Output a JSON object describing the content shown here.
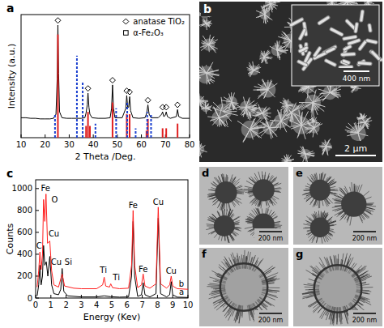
{
  "chart_data": [
    {
      "type": "line",
      "panel": "a",
      "x_label": "2 Theta /Deg.",
      "y_label": "Intensity (a.u.)",
      "xlim": [
        10,
        80
      ],
      "xticks": [
        10,
        20,
        30,
        40,
        50,
        60,
        70,
        80
      ],
      "ylim": [
        0,
        105
      ],
      "tick_labels": "x",
      "legend": "upper right",
      "series": [
        {
          "type": "line",
          "color": "#000000",
          "x": [
            10,
            12,
            14,
            16,
            18,
            20,
            22,
            23.5,
            24.5,
            25,
            25.3,
            25.6,
            26,
            27,
            29,
            31,
            33,
            35,
            36.5,
            37,
            37.5,
            37.8,
            38.2,
            38.6,
            39.5,
            42,
            45,
            47,
            47.6,
            48,
            48.4,
            49,
            52,
            53.5,
            53.9,
            54.3,
            54.7,
            55.1,
            55.5,
            56.5,
            59,
            61.5,
            62.2,
            62.7,
            63.2,
            64,
            67,
            68.4,
            68.8,
            69.3,
            69.9,
            70.3,
            70.8,
            72,
            74.5,
            75,
            75.5,
            77,
            80
          ],
          "values": [
            17,
            17,
            16.5,
            16.5,
            16,
            16,
            16,
            16.5,
            20,
            50,
            96,
            55,
            22,
            17,
            16.5,
            16.5,
            16.5,
            16.5,
            17,
            21,
            28,
            38,
            26,
            20,
            17,
            16.5,
            16.5,
            17,
            25,
            45,
            25,
            17,
            17,
            25,
            36,
            26,
            26,
            35,
            23,
            17,
            16.5,
            17,
            21,
            28,
            20,
            17,
            17,
            20,
            22,
            18,
            19,
            22,
            18,
            16.5,
            18,
            24,
            18,
            16.5,
            16.5
          ]
        },
        {
          "name": "anatase TiO₂",
          "type": "scatter",
          "marker": "diamond",
          "color": "#000000",
          "x": [
            25.3,
            37.8,
            48,
            53.9,
            55.1,
            62.7,
            68.8,
            70.3,
            75
          ],
          "values": [
            100,
            42,
            49,
            40,
            39,
            32,
            26,
            26,
            28
          ]
        },
        {
          "name": "α-Fe₂O₃",
          "type": "scatter",
          "marker": "square",
          "color": "#000000",
          "x": [],
          "values": []
        },
        {
          "type": "stem",
          "color": "#e02020",
          "line_style": "solid",
          "x": [
            25.3,
            37,
            37.8,
            38.6,
            48,
            53.9,
            55.1,
            62.1,
            62.7,
            68.8,
            70.3,
            75
          ],
          "values": [
            88,
            10,
            22,
            10,
            30,
            20,
            20,
            6,
            16,
            8,
            8,
            12
          ]
        },
        {
          "type": "stem",
          "color": "#1a3fcf",
          "line_style": "dashed",
          "x": [
            24.1,
            33.2,
            35.6,
            40.9,
            49.5,
            54.1,
            57.6,
            62.4,
            64
          ],
          "values": [
            20,
            70,
            48,
            12,
            25,
            30,
            8,
            22,
            20
          ]
        }
      ]
    },
    {
      "type": "line",
      "panel": "c",
      "x_label": "Energy (Kev)",
      "y_label": "Counts",
      "xlim": [
        0,
        10
      ],
      "xticks": [
        0,
        1,
        2,
        3,
        4,
        5,
        6,
        7,
        8,
        9,
        10
      ],
      "ylim": [
        0,
        1080
      ],
      "yticks": [
        0,
        200,
        400,
        600,
        800,
        1000
      ],
      "series": [
        {
          "name": "a",
          "color": "#000000",
          "x": [
            0.1,
            0.2,
            0.28,
            0.36,
            0.45,
            0.52,
            0.6,
            0.7,
            0.8,
            0.93,
            1.05,
            1.2,
            1.5,
            1.65,
            1.74,
            1.85,
            2.1,
            3,
            4,
            4.5,
            4.93,
            5.5,
            6.1,
            6.3,
            6.4,
            6.5,
            6.7,
            6.95,
            7.06,
            7.18,
            7.5,
            7.9,
            8.05,
            8.2,
            8.6,
            8.8,
            8.9,
            9.0,
            9.3,
            10
          ],
          "values": [
            20,
            120,
            300,
            120,
            200,
            480,
            300,
            330,
            200,
            380,
            120,
            40,
            30,
            80,
            270,
            60,
            20,
            10,
            10,
            20,
            12,
            8,
            10,
            200,
            700,
            200,
            15,
            30,
            140,
            30,
            10,
            40,
            730,
            40,
            10,
            30,
            150,
            30,
            8,
            5
          ]
        },
        {
          "name": "b",
          "color": "#ff1f1f",
          "x": [
            0.1,
            0.2,
            0.28,
            0.36,
            0.45,
            0.52,
            0.6,
            0.68,
            0.78,
            0.93,
            1.05,
            1.2,
            1.5,
            1.74,
            1.9,
            2.5,
            3,
            4,
            4.4,
            4.5,
            4.6,
            4.85,
            4.93,
            5.05,
            5.5,
            6.1,
            6.3,
            6.4,
            6.5,
            6.7,
            6.95,
            7.06,
            7.18,
            7.5,
            7.9,
            8.05,
            8.2,
            8.6,
            8.8,
            8.9,
            9.0,
            9.3,
            10
          ],
          "values": [
            100,
            250,
            420,
            260,
            400,
            900,
            700,
            950,
            500,
            520,
            250,
            120,
            100,
            220,
            110,
            90,
            85,
            85,
            120,
            190,
            110,
            100,
            130,
            95,
            85,
            90,
            300,
            800,
            300,
            95,
            120,
            220,
            110,
            90,
            130,
            830,
            130,
            90,
            120,
            200,
            110,
            85,
            80
          ]
        }
      ],
      "annotations": [
        {
          "text": "C",
          "x": 0.22,
          "y": 450
        },
        {
          "text": "Fe",
          "x": 0.65,
          "y": 975
        },
        {
          "text": "O",
          "x": 1.25,
          "y": 870
        },
        {
          "text": "Cu",
          "x": 1.2,
          "y": 560
        },
        {
          "text": "Cu",
          "x": 1.35,
          "y": 300
        },
        {
          "text": "Si",
          "x": 2.15,
          "y": 300
        },
        {
          "text": "Ti",
          "x": 4.45,
          "y": 230
        },
        {
          "text": "Ti",
          "x": 5.3,
          "y": 160
        },
        {
          "text": "Fe",
          "x": 6.4,
          "y": 820
        },
        {
          "text": "Fe",
          "x": 7.06,
          "y": 240
        },
        {
          "text": "Cu",
          "x": 8.05,
          "y": 850
        },
        {
          "text": "Cu",
          "x": 8.9,
          "y": 220
        }
      ]
    }
  ],
  "images": [
    {
      "label": "b",
      "scale_bar": "2 μm",
      "inset_scale_bar": "400 nm"
    },
    {
      "label": "d",
      "scale_bar": "200 nm"
    },
    {
      "label": "e",
      "scale_bar": "200 nm"
    },
    {
      "label": "f",
      "scale_bar": "200 nm"
    },
    {
      "label": "g",
      "scale_bar": "200 nm"
    }
  ]
}
